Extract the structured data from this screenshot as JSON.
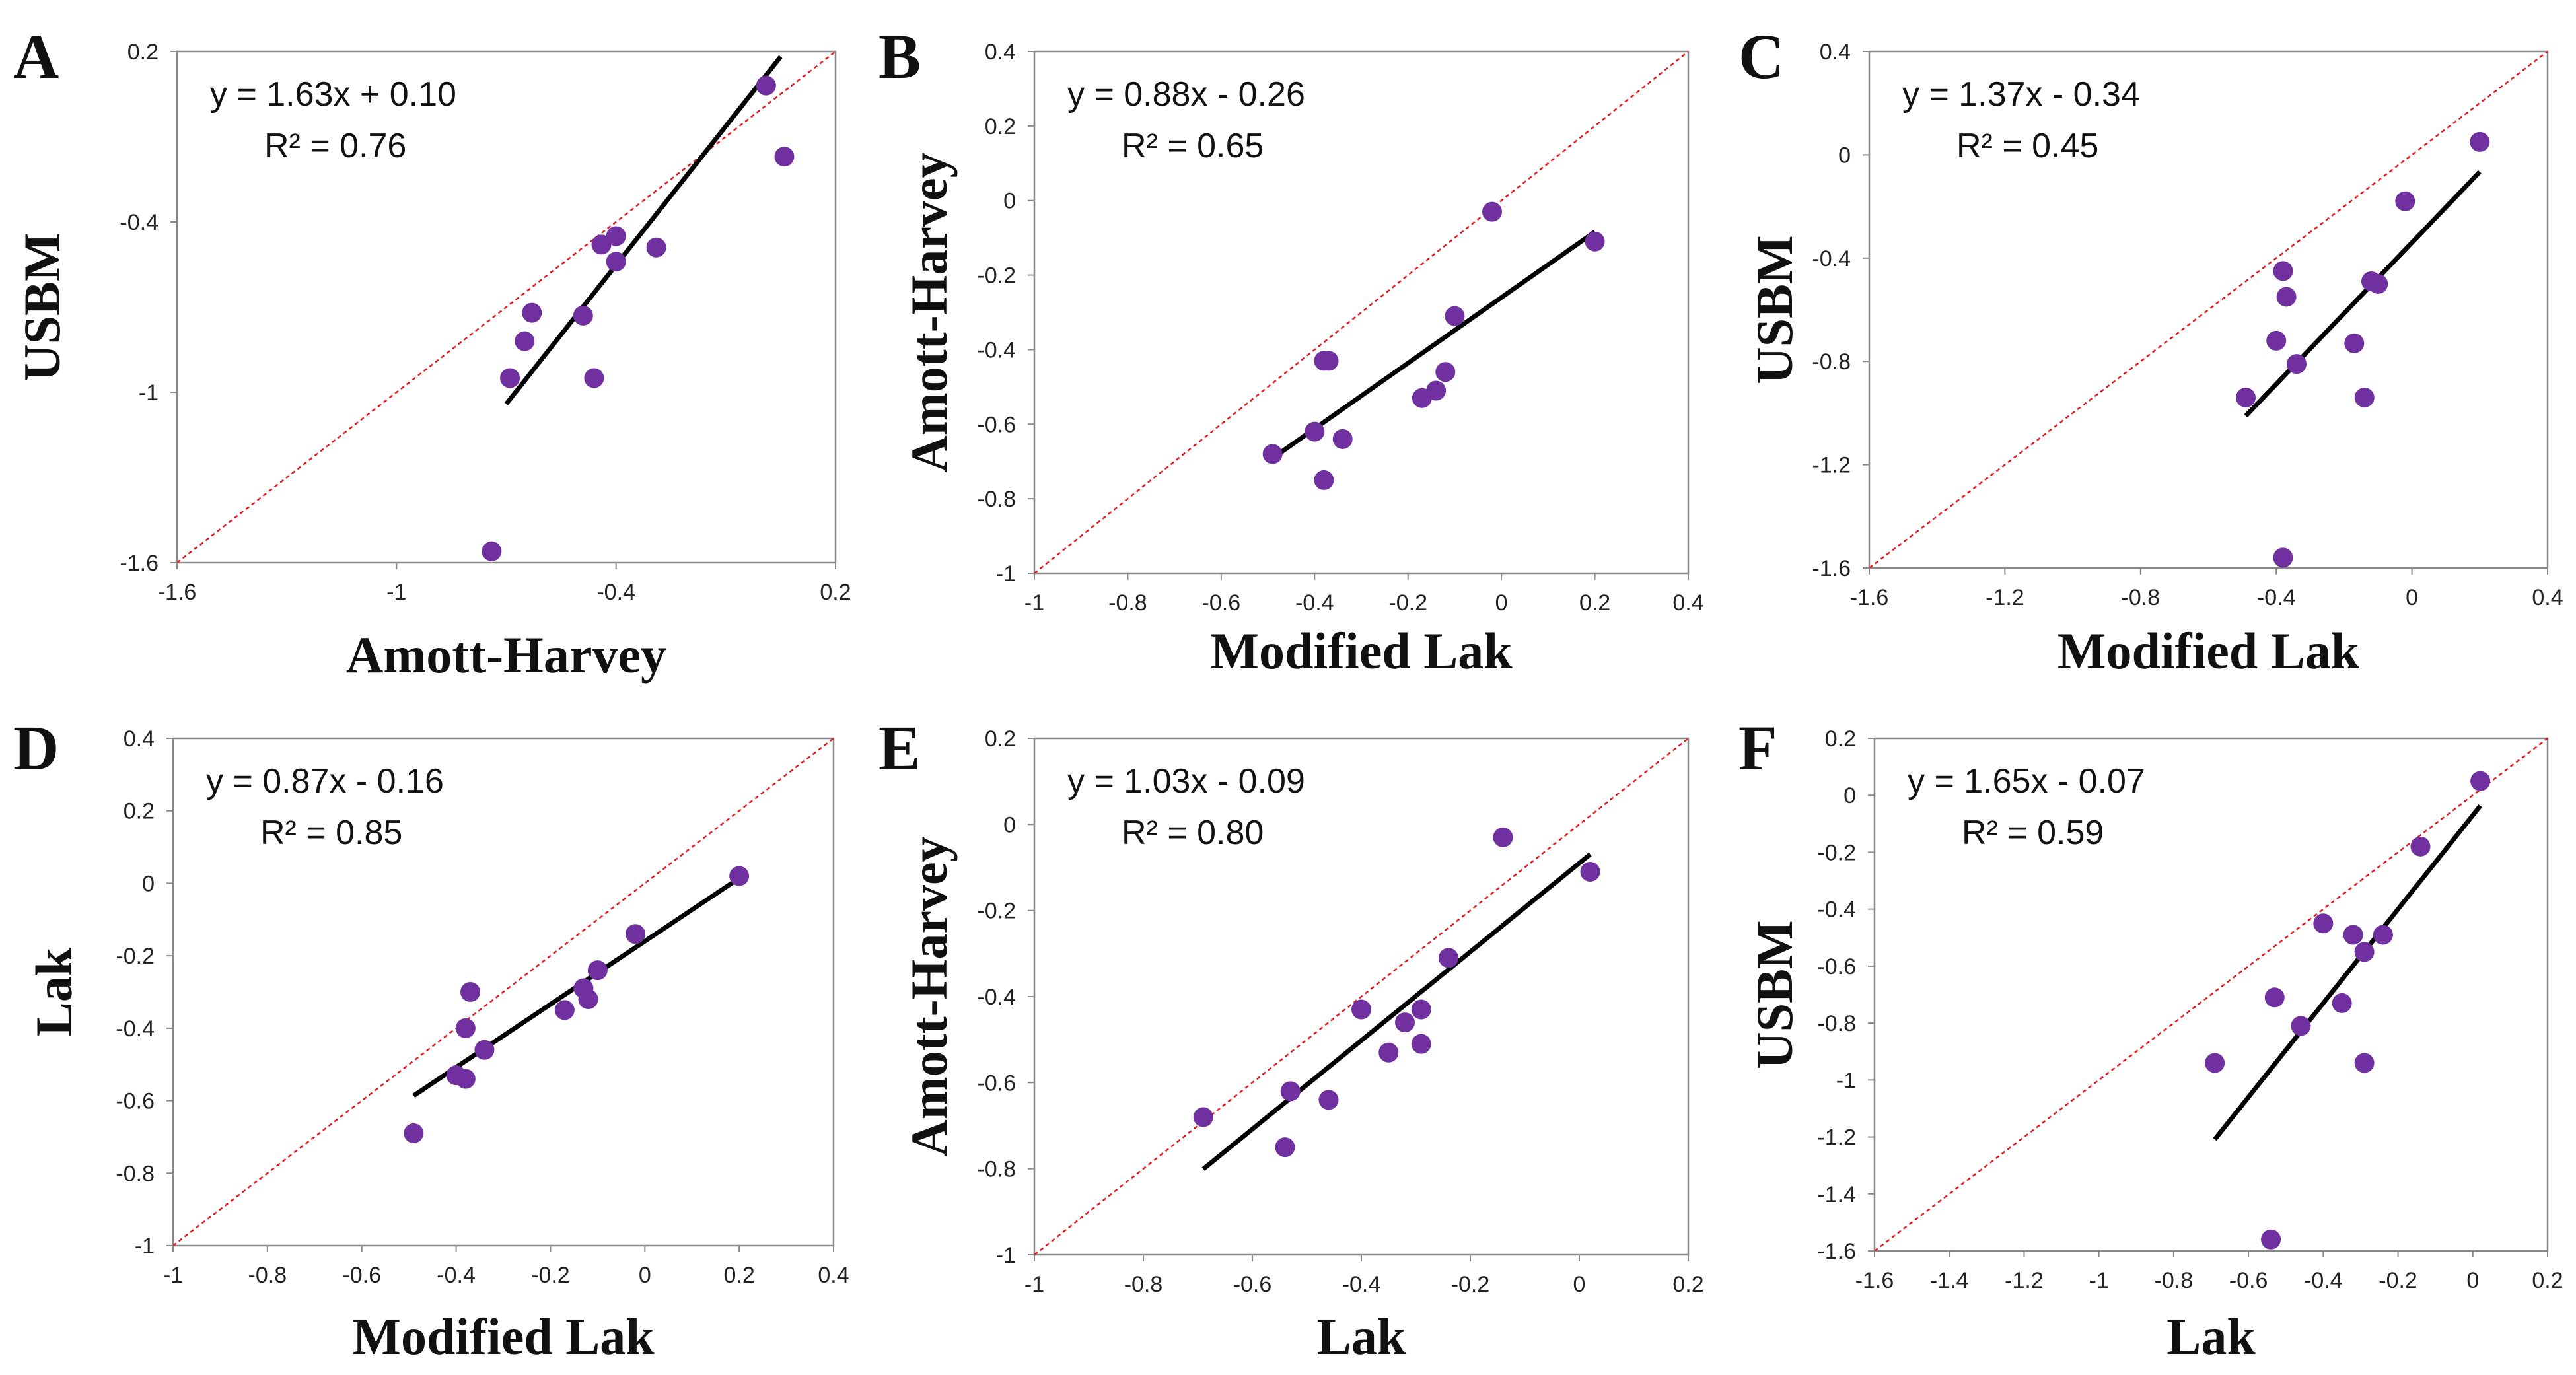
{
  "figure": {
    "description_free": true
  },
  "colors": {
    "point": "#7030a0",
    "fit": "#000000",
    "identity": "#e41a1c",
    "frame": "#888888"
  },
  "chart_data": [
    {
      "panel": "A",
      "type": "scatter",
      "xlabel": "Amott-Harvey",
      "ylabel": "USBM",
      "xlim": [
        -1.6,
        0.2
      ],
      "ylim": [
        -1.6,
        0.2
      ],
      "xticks": [
        -1.6,
        -1,
        -0.4,
        0.2
      ],
      "yticks": [
        -1.6,
        -1,
        -0.4,
        0.2
      ],
      "equation": "y = 1.63x + 0.10",
      "r2": "R² = 0.76",
      "fit": {
        "slope": 1.63,
        "intercept": 0.1,
        "x_range": [
          -0.7,
          0.05
        ]
      },
      "points": [
        {
          "x": 0.01,
          "y": 0.08
        },
        {
          "x": 0.06,
          "y": -0.17
        },
        {
          "x": -0.44,
          "y": -0.48
        },
        {
          "x": -0.4,
          "y": -0.45
        },
        {
          "x": -0.4,
          "y": -0.54
        },
        {
          "x": -0.29,
          "y": -0.49
        },
        {
          "x": -0.63,
          "y": -0.72
        },
        {
          "x": -0.49,
          "y": -0.73
        },
        {
          "x": -0.65,
          "y": -0.82
        },
        {
          "x": -0.69,
          "y": -0.95
        },
        {
          "x": -0.46,
          "y": -0.95
        },
        {
          "x": -0.74,
          "y": -1.56
        }
      ]
    },
    {
      "panel": "B",
      "type": "scatter",
      "xlabel": "Modified Lak",
      "ylabel": "Amott-Harvey",
      "xlim": [
        -1,
        0.4
      ],
      "ylim": [
        -1,
        0.4
      ],
      "xticks": [
        -1,
        -0.8,
        -0.6,
        -0.4,
        -0.2,
        0,
        0.2,
        0.4
      ],
      "yticks": [
        -1,
        -0.8,
        -0.6,
        -0.4,
        -0.2,
        0,
        0.2,
        0.4
      ],
      "equation": "y = 0.88x - 0.26",
      "r2": "R² = 0.65",
      "fit": {
        "slope": 0.88,
        "intercept": -0.26,
        "x_range": [
          -0.49,
          0.2
        ]
      },
      "points": [
        {
          "x": -0.02,
          "y": -0.03
        },
        {
          "x": 0.2,
          "y": -0.11
        },
        {
          "x": -0.1,
          "y": -0.31
        },
        {
          "x": -0.38,
          "y": -0.43
        },
        {
          "x": -0.37,
          "y": -0.43
        },
        {
          "x": -0.12,
          "y": -0.46
        },
        {
          "x": -0.14,
          "y": -0.51
        },
        {
          "x": -0.17,
          "y": -0.53
        },
        {
          "x": -0.4,
          "y": -0.62
        },
        {
          "x": -0.34,
          "y": -0.64
        },
        {
          "x": -0.49,
          "y": -0.68
        },
        {
          "x": -0.38,
          "y": -0.75
        }
      ]
    },
    {
      "panel": "C",
      "type": "scatter",
      "xlabel": "Modified Lak",
      "ylabel": "USBM",
      "xlim": [
        -1.6,
        0.4
      ],
      "ylim": [
        -1.6,
        0.4
      ],
      "xticks": [
        -1.6,
        -1.2,
        -0.8,
        -0.4,
        0,
        0.4
      ],
      "yticks": [
        -1.6,
        -1.2,
        -0.8,
        -0.4,
        0,
        0.4
      ],
      "equation": "y = 1.37x - 0.34",
      "r2": "R² = 0.45",
      "fit": {
        "slope": 1.37,
        "intercept": -0.34,
        "x_range": [
          -0.49,
          0.2
        ]
      },
      "points": [
        {
          "x": 0.2,
          "y": 0.05
        },
        {
          "x": -0.02,
          "y": -0.18
        },
        {
          "x": -0.38,
          "y": -0.45
        },
        {
          "x": -0.12,
          "y": -0.49
        },
        {
          "x": -0.1,
          "y": -0.5
        },
        {
          "x": -0.37,
          "y": -0.55
        },
        {
          "x": -0.4,
          "y": -0.72
        },
        {
          "x": -0.17,
          "y": -0.73
        },
        {
          "x": -0.34,
          "y": -0.81
        },
        {
          "x": -0.49,
          "y": -0.94
        },
        {
          "x": -0.14,
          "y": -0.94
        },
        {
          "x": -0.38,
          "y": -1.56
        }
      ]
    },
    {
      "panel": "D",
      "type": "scatter",
      "xlabel": "Modified Lak",
      "ylabel": "Lak",
      "xlim": [
        -1,
        0.4
      ],
      "ylim": [
        -1,
        0.4
      ],
      "xticks": [
        -1,
        -0.8,
        -0.6,
        -0.4,
        -0.2,
        0,
        0.2,
        0.4
      ],
      "yticks": [
        -1,
        -0.8,
        -0.6,
        -0.4,
        -0.2,
        0,
        0.2,
        0.4
      ],
      "equation": "y = 0.87x - 0.16",
      "r2": "R² = 0.85",
      "fit": {
        "slope": 0.87,
        "intercept": -0.16,
        "x_range": [
          -0.49,
          0.2
        ]
      },
      "points": [
        {
          "x": 0.2,
          "y": 0.02
        },
        {
          "x": -0.02,
          "y": -0.14
        },
        {
          "x": -0.1,
          "y": -0.24
        },
        {
          "x": -0.37,
          "y": -0.3
        },
        {
          "x": -0.13,
          "y": -0.29
        },
        {
          "x": -0.12,
          "y": -0.32
        },
        {
          "x": -0.17,
          "y": -0.35
        },
        {
          "x": -0.38,
          "y": -0.4
        },
        {
          "x": -0.34,
          "y": -0.46
        },
        {
          "x": -0.4,
          "y": -0.53
        },
        {
          "x": -0.38,
          "y": -0.54
        },
        {
          "x": -0.49,
          "y": -0.69
        }
      ]
    },
    {
      "panel": "E",
      "type": "scatter",
      "xlabel": "Lak",
      "ylabel": "Amott-Harvey",
      "xlim": [
        -1,
        0.2
      ],
      "ylim": [
        -1,
        0.2
      ],
      "xticks": [
        -1,
        -0.8,
        -0.6,
        -0.4,
        -0.2,
        0,
        0.2
      ],
      "yticks": [
        -1,
        -0.8,
        -0.6,
        -0.4,
        -0.2,
        0,
        0.2
      ],
      "equation": "y = 1.03x - 0.09",
      "r2": "R² = 0.80",
      "fit": {
        "slope": 1.03,
        "intercept": -0.09,
        "x_range": [
          -0.69,
          0.02
        ]
      },
      "points": [
        {
          "x": -0.14,
          "y": -0.03
        },
        {
          "x": 0.02,
          "y": -0.11
        },
        {
          "x": -0.24,
          "y": -0.31
        },
        {
          "x": -0.4,
          "y": -0.43
        },
        {
          "x": -0.29,
          "y": -0.43
        },
        {
          "x": -0.32,
          "y": -0.46
        },
        {
          "x": -0.29,
          "y": -0.51
        },
        {
          "x": -0.35,
          "y": -0.53
        },
        {
          "x": -0.53,
          "y": -0.62
        },
        {
          "x": -0.46,
          "y": -0.64
        },
        {
          "x": -0.69,
          "y": -0.68
        },
        {
          "x": -0.54,
          "y": -0.75
        }
      ]
    },
    {
      "panel": "F",
      "type": "scatter",
      "xlabel": "Lak",
      "ylabel": "USBM",
      "xlim": [
        -1.6,
        0.2
      ],
      "ylim": [
        -1.6,
        0.2
      ],
      "xticks": [
        -1.6,
        -1.4,
        -1.2,
        -1,
        -0.8,
        -0.6,
        -0.4,
        -0.2,
        0,
        0.2
      ],
      "yticks": [
        -1.6,
        -1.4,
        -1.2,
        -1,
        -0.8,
        -0.6,
        -0.4,
        -0.2,
        0,
        0.2
      ],
      "equation": "y = 1.65x - 0.07",
      "r2": "R² = 0.59",
      "fit": {
        "slope": 1.65,
        "intercept": -0.07,
        "x_range": [
          -0.69,
          0.02
        ]
      },
      "points": [
        {
          "x": 0.02,
          "y": 0.05
        },
        {
          "x": -0.14,
          "y": -0.18
        },
        {
          "x": -0.4,
          "y": -0.45
        },
        {
          "x": -0.32,
          "y": -0.49
        },
        {
          "x": -0.24,
          "y": -0.49
        },
        {
          "x": -0.29,
          "y": -0.55
        },
        {
          "x": -0.53,
          "y": -0.71
        },
        {
          "x": -0.35,
          "y": -0.73
        },
        {
          "x": -0.46,
          "y": -0.81
        },
        {
          "x": -0.69,
          "y": -0.94
        },
        {
          "x": -0.29,
          "y": -0.94
        },
        {
          "x": -0.54,
          "y": -1.56
        }
      ]
    }
  ]
}
